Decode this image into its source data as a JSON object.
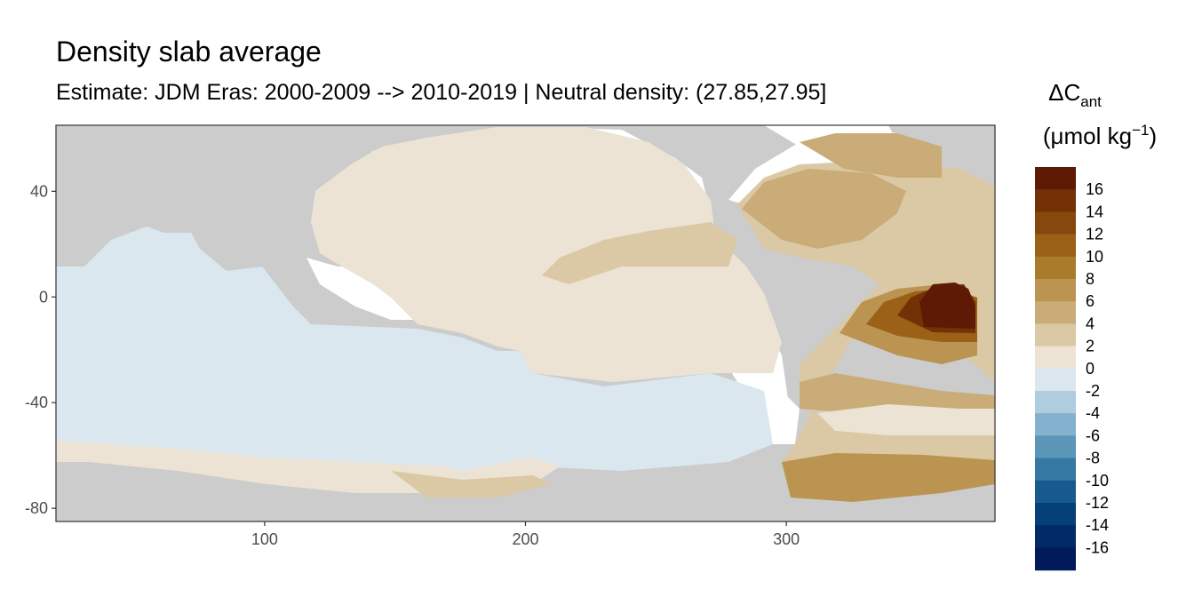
{
  "title": "Density slab average",
  "subtitle": "Estimate: JDM Eras: 2000-2009 --> 2010-2019 | Neutral density: (27.85,27.95]",
  "colors": {
    "land": "#cccccc",
    "ice_gap": "#ffffff",
    "panel_border": "#333333"
  },
  "chart_data": {
    "type": "heatmap",
    "title": "Density slab average",
    "subtitle": "Estimate: JDM Eras: 2000-2009 --> 2010-2019 | Neutral density: (27.85,27.95]",
    "xlabel": "",
    "ylabel": "",
    "xlim": [
      20,
      380
    ],
    "ylim": [
      -85,
      65
    ],
    "x_ticks": [
      100,
      200,
      300
    ],
    "y_ticks": [
      40,
      0,
      -40,
      -80
    ],
    "grid": false,
    "legend_position": "right",
    "legend": {
      "title_main": "ΔC",
      "title_sub": "ant",
      "units": "(μmol kg",
      "units_sup": "−1",
      "units_close": ")",
      "bins": [
        {
          "label": "16",
          "color": "#5e1a05"
        },
        {
          "label": "14",
          "color": "#743106"
        },
        {
          "label": "12",
          "color": "#87480d"
        },
        {
          "label": "10",
          "color": "#9a6117"
        },
        {
          "label": "8",
          "color": "#ab7b2c"
        },
        {
          "label": "6",
          "color": "#ba9450"
        },
        {
          "label": "4",
          "color": "#c9ac78"
        },
        {
          "label": "2",
          "color": "#dbc8a4"
        },
        {
          "label": "0",
          "color": "#ece3d4"
        },
        {
          "label": "-2",
          "color": "#dbe7ee"
        },
        {
          "label": "-4",
          "color": "#b0cde0"
        },
        {
          "label": "-6",
          "color": "#84b1cd"
        },
        {
          "label": "-8",
          "color": "#5b95b8"
        },
        {
          "label": "-10",
          "color": "#3578a3"
        },
        {
          "label": "-12",
          "color": "#175b8e"
        },
        {
          "label": "-14",
          "color": "#064078"
        },
        {
          "label": "-16",
          "color": "#022a67"
        },
        {
          "label": "",
          "color": "#011a5a"
        }
      ]
    }
  }
}
